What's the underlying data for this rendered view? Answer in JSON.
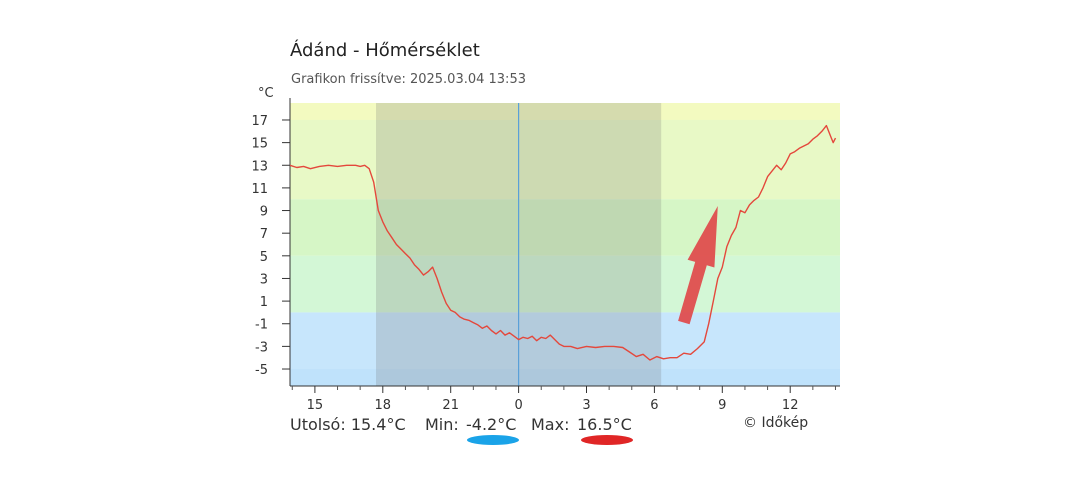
{
  "header": {
    "title": "Ádánd - Hőmérséklet",
    "subtitle": "Grafikon frissítve: 2025.03.04 13:53"
  },
  "footer": {
    "last_label": "Utolsó: 15.4°C",
    "min_label": "Min:",
    "min_value": "-4.2°C",
    "max_label": "Max:",
    "max_value": "16.5°C",
    "credit": "© Időkép"
  },
  "colors": {
    "line": "#e4483c",
    "min_marker": "#1aa3e8",
    "max_marker": "#e02626",
    "arrow": "#e0494a",
    "midnight_line": "#5aa0d8",
    "night_shade": "#6f6f6f"
  },
  "chart_data": {
    "type": "line",
    "ylabel": "°C",
    "ylim": [
      -6.5,
      18.5
    ],
    "yticks": [
      17,
      15,
      13,
      11,
      9,
      7,
      5,
      3,
      1,
      -1,
      -3,
      -5
    ],
    "xticks": [
      {
        "label": "15",
        "h": -9
      },
      {
        "label": "18",
        "h": -6
      },
      {
        "label": "21",
        "h": -3
      },
      {
        "label": "0",
        "h": 0
      },
      {
        "label": "3",
        "h": 3
      },
      {
        "label": "6",
        "h": 6
      },
      {
        "label": "9",
        "h": 9
      },
      {
        "label": "12",
        "h": 12
      }
    ],
    "xlim": [
      -10.1,
      14.2
    ],
    "night_shading": [
      -6.3,
      6.3
    ],
    "midnight_marker": 0,
    "bands": [
      {
        "from": 17,
        "to": 18.5,
        "color": "#f3fac0"
      },
      {
        "from": 10,
        "to": 17,
        "color": "#e8f9c6"
      },
      {
        "from": 5,
        "to": 10,
        "color": "#d6f6c6"
      },
      {
        "from": 0,
        "to": 5,
        "color": "#d3f7d6"
      },
      {
        "from": -5,
        "to": 0,
        "color": "#c7e6fc"
      },
      {
        "from": -6.5,
        "to": -5,
        "color": "#bfe2fb"
      }
    ],
    "trend_arrow": {
      "from": [
        7.3,
        -0.9
      ],
      "to": [
        8.8,
        9.4
      ]
    },
    "series": [
      {
        "x": [
          -10.1,
          -9.8,
          -9.5,
          -9.2,
          -8.8,
          -8.4,
          -8.0,
          -7.6,
          -7.2,
          -7.0,
          -6.8,
          -6.6,
          -6.4,
          -6.2,
          -6.0,
          -5.8,
          -5.6,
          -5.4,
          -5.2,
          -5.0,
          -4.8,
          -4.6,
          -4.4,
          -4.2,
          -4.0,
          -3.8,
          -3.6,
          -3.4,
          -3.2,
          -3.0,
          -2.8,
          -2.6,
          -2.4,
          -2.2,
          -2.0,
          -1.8,
          -1.6,
          -1.4,
          -1.2,
          -1.0,
          -0.8,
          -0.6,
          -0.4,
          -0.2,
          0.0,
          0.2,
          0.4,
          0.6,
          0.8,
          1.0,
          1.2,
          1.4,
          1.6,
          1.8,
          2.0,
          2.3,
          2.6,
          3.0,
          3.4,
          3.8,
          4.2,
          4.6,
          4.9,
          5.2,
          5.5,
          5.8,
          6.1,
          6.4,
          6.7,
          7.0,
          7.3,
          7.6,
          7.9,
          8.2,
          8.4,
          8.6,
          8.8,
          9.0,
          9.2,
          9.4,
          9.6,
          9.8,
          10.0,
          10.2,
          10.4,
          10.6,
          10.8,
          11.0,
          11.2,
          11.4,
          11.6,
          11.8,
          12.0,
          12.2,
          12.4,
          12.6,
          12.8,
          13.0,
          13.2,
          13.4,
          13.6,
          13.8,
          13.9,
          14.0
        ],
        "y": [
          13.0,
          12.8,
          12.9,
          12.7,
          12.9,
          13.0,
          12.9,
          13.0,
          13.0,
          12.9,
          13.0,
          12.7,
          11.5,
          9.0,
          8.0,
          7.2,
          6.6,
          6.0,
          5.6,
          5.2,
          4.8,
          4.2,
          3.8,
          3.3,
          3.6,
          4.0,
          3.0,
          1.8,
          0.8,
          0.2,
          0.0,
          -0.4,
          -0.6,
          -0.7,
          -0.9,
          -1.1,
          -1.4,
          -1.2,
          -1.6,
          -1.9,
          -1.6,
          -2.0,
          -1.8,
          -2.1,
          -2.4,
          -2.2,
          -2.3,
          -2.1,
          -2.5,
          -2.2,
          -2.3,
          -2.0,
          -2.4,
          -2.8,
          -3.0,
          -3.0,
          -3.2,
          -3.0,
          -3.1,
          -3.0,
          -3.0,
          -3.1,
          -3.5,
          -3.9,
          -3.7,
          -4.2,
          -3.9,
          -4.1,
          -4.0,
          -4.0,
          -3.6,
          -3.7,
          -3.2,
          -2.6,
          -1.0,
          1.0,
          3.0,
          4.0,
          5.8,
          6.8,
          7.5,
          9.0,
          8.8,
          9.5,
          9.9,
          10.2,
          11.0,
          12.0,
          12.5,
          13.0,
          12.6,
          13.2,
          14.0,
          14.2,
          14.5,
          14.7,
          14.9,
          15.3,
          15.6,
          16.0,
          16.5,
          15.5,
          15.0,
          15.4
        ]
      }
    ]
  }
}
